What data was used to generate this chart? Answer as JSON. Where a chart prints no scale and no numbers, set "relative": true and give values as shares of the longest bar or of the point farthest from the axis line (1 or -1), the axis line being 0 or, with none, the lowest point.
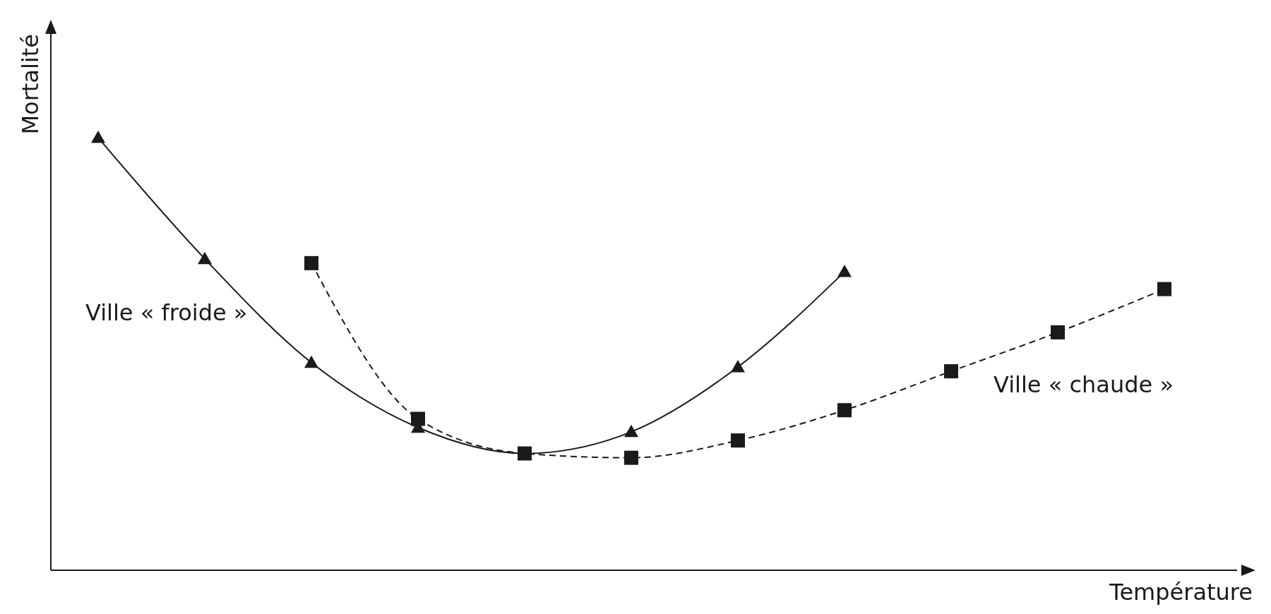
{
  "chart_data": {
    "type": "line",
    "xlabel": "Température",
    "ylabel": "Mortalité",
    "relative": true,
    "categories": [
      null,
      null,
      null,
      null,
      null,
      null,
      null,
      null,
      null,
      null,
      null
    ],
    "series": [
      {
        "name": "Ville « froide »",
        "color": "#1a1a1a",
        "marker": "triangle",
        "line_style": "solid",
        "values": [
          1,
          0.72,
          0.48,
          0.33,
          0.27,
          0.32,
          0.47,
          0.69,
          null,
          null,
          null
        ]
      },
      {
        "name": "Ville « chaude »",
        "color": "#1a1a1a",
        "marker": "square",
        "line_style": "dashed",
        "values": [
          null,
          null,
          0.71,
          0.35,
          0.27,
          0.26,
          0.3,
          0.37,
          0.46,
          0.55,
          0.65
        ]
      }
    ]
  }
}
